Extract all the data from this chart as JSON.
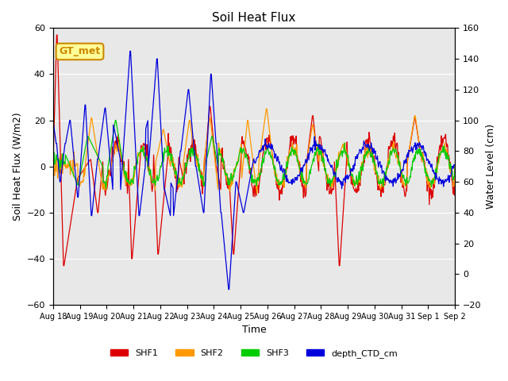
{
  "title": "Soil Heat Flux",
  "ylabel_left": "Soil Heat Flux (W/m2)",
  "ylabel_right": "Water Level (cm)",
  "xlabel": "Time",
  "ylim_left": [
    -60,
    60
  ],
  "ylim_right": [
    -20,
    160
  ],
  "background_color": "#ffffff",
  "plot_bg_color": "#e8e8e8",
  "annotation_text": "GT_met",
  "annotation_bg": "#ffff99",
  "annotation_border": "#cc8800",
  "colors": {
    "SHF1": "#dd0000",
    "SHF2": "#ff9900",
    "SHF3": "#00cc00",
    "depth_CTD_cm": "#0000dd"
  },
  "legend_labels": [
    "SHF1",
    "SHF2",
    "SHF3",
    "depth_CTD_cm"
  ],
  "xtick_labels": [
    "Aug 18",
    "Aug 19",
    "Aug 20",
    "Aug 21",
    "Aug 22",
    "Aug 23",
    "Aug 24",
    "Aug 25",
    "Aug 26",
    "Aug 27",
    "Aug 28",
    "Aug 29",
    "Aug 30",
    "Aug 31",
    "Sep 1",
    "Sep 2"
  ],
  "n_days": 16,
  "points_per_day": 48
}
